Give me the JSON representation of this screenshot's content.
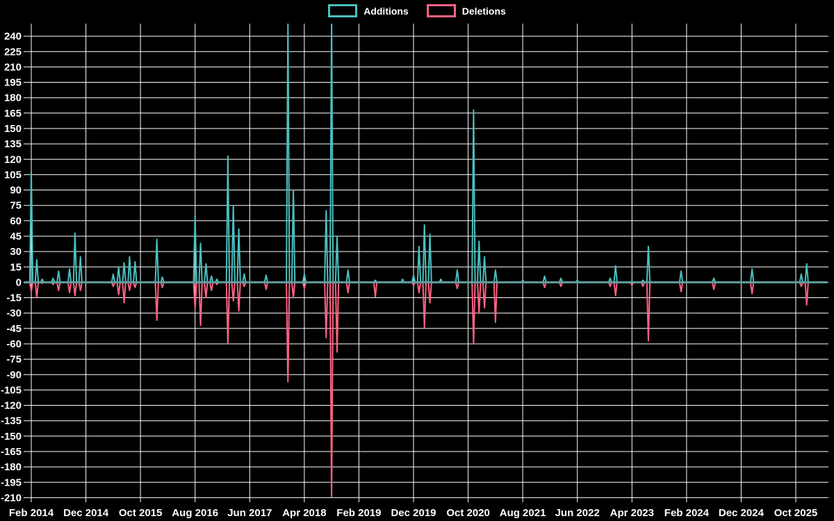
{
  "legend": {
    "items": [
      {
        "label": "Additions",
        "color": "#4BC0C0"
      },
      {
        "label": "Deletions",
        "color": "#FF6384"
      }
    ]
  },
  "colors": {
    "background": "#000000",
    "grid": "#FFFFFF",
    "zero_line": "#5F9EA0",
    "text": "#FFFFFF",
    "additions": "#4BC0C0",
    "deletions": "#FF6384"
  },
  "chart_data": {
    "type": "line",
    "description": "Monthly code additions (teal, positive) and deletions (pink, negative) spikes around a zero baseline",
    "x_start": "Feb 2014",
    "x_end": "Dec 2025",
    "n_points": 143,
    "y_axis": {
      "min": -210,
      "max": 240,
      "step": 15
    },
    "y_tick_labels": [
      "240",
      "225",
      "210",
      "195",
      "180",
      "165",
      "150",
      "135",
      "120",
      "105",
      "90",
      "75",
      "60",
      "45",
      "30",
      "15",
      "0",
      "-15",
      "-30",
      "-45",
      "-60",
      "-75",
      "-90",
      "-105",
      "-120",
      "-135",
      "-150",
      "-165",
      "-180",
      "-195",
      "-210"
    ],
    "x_tick_labels": [
      {
        "i": 0,
        "label": "Feb 2014"
      },
      {
        "i": 10,
        "label": "Dec 2014"
      },
      {
        "i": 20,
        "label": "Oct 2015"
      },
      {
        "i": 30,
        "label": "Aug 2016"
      },
      {
        "i": 40,
        "label": "Jun 2017"
      },
      {
        "i": 50,
        "label": "Apr 2018"
      },
      {
        "i": 60,
        "label": "Feb 2019"
      },
      {
        "i": 70,
        "label": "Dec 2019"
      },
      {
        "i": 80,
        "label": "Oct 2020"
      },
      {
        "i": 90,
        "label": "Aug 2021"
      },
      {
        "i": 100,
        "label": "Jun 2022"
      },
      {
        "i": 110,
        "label": "Apr 2023"
      },
      {
        "i": 120,
        "label": "Feb 2024"
      },
      {
        "i": 130,
        "label": "Dec 2024"
      },
      {
        "i": 140,
        "label": "Oct 2025"
      }
    ],
    "series": [
      {
        "name": "Additions",
        "color": "#4BC0C0"
      },
      {
        "name": "Deletions",
        "color": "#FF6384"
      }
    ],
    "all_other_values": 0,
    "spikes": [
      {
        "i": 0,
        "month": "Feb 2014",
        "additions": 108,
        "deletions": -9
      },
      {
        "i": 1,
        "month": "Mar 2014",
        "additions": 22,
        "deletions": -15
      },
      {
        "i": 2,
        "month": "Apr 2014",
        "additions": 3,
        "deletions": -1
      },
      {
        "i": 4,
        "month": "Jun 2014",
        "additions": 4,
        "deletions": -2
      },
      {
        "i": 5,
        "month": "Jul 2014",
        "additions": 11,
        "deletions": -8
      },
      {
        "i": 7,
        "month": "Sep 2014",
        "additions": 13,
        "deletions": -10
      },
      {
        "i": 8,
        "month": "Oct 2014",
        "additions": 48,
        "deletions": -13
      },
      {
        "i": 9,
        "month": "Nov 2014",
        "additions": 25,
        "deletions": -8
      },
      {
        "i": 15,
        "month": "May 2015",
        "additions": 8,
        "deletions": -4
      },
      {
        "i": 16,
        "month": "Jun 2015",
        "additions": 15,
        "deletions": -12
      },
      {
        "i": 17,
        "month": "Jul 2015",
        "additions": 19,
        "deletions": -20
      },
      {
        "i": 18,
        "month": "Aug 2015",
        "additions": 25,
        "deletions": -8
      },
      {
        "i": 19,
        "month": "Sep 2015",
        "additions": 20,
        "deletions": -5
      },
      {
        "i": 23,
        "month": "Jan 2016",
        "additions": 42,
        "deletions": -37
      },
      {
        "i": 24,
        "month": "Feb 2016",
        "additions": 5,
        "deletions": -5
      },
      {
        "i": 30,
        "month": "Aug 2016",
        "additions": 65,
        "deletions": -25
      },
      {
        "i": 31,
        "month": "Sep 2016",
        "additions": 38,
        "deletions": -42
      },
      {
        "i": 32,
        "month": "Oct 2016",
        "additions": 18,
        "deletions": -15
      },
      {
        "i": 33,
        "month": "Nov 2016",
        "additions": 6,
        "deletions": -8
      },
      {
        "i": 34,
        "month": "Dec 2016",
        "additions": 3,
        "deletions": -2
      },
      {
        "i": 36,
        "month": "Feb 2017",
        "additions": 123,
        "deletions": -60
      },
      {
        "i": 37,
        "month": "Mar 2017",
        "additions": 75,
        "deletions": -18
      },
      {
        "i": 38,
        "month": "Apr 2017",
        "additions": 52,
        "deletions": -28
      },
      {
        "i": 39,
        "month": "May 2017",
        "additions": 8,
        "deletions": -4
      },
      {
        "i": 43,
        "month": "Sep 2017",
        "additions": 7,
        "deletions": -7
      },
      {
        "i": 47,
        "month": "Jan 2018",
        "additions": 255,
        "deletions": -97
      },
      {
        "i": 48,
        "month": "Feb 2018",
        "additions": 90,
        "deletions": -15
      },
      {
        "i": 50,
        "month": "Apr 2018",
        "additions": 8,
        "deletions": -6
      },
      {
        "i": 54,
        "month": "Aug 2018",
        "additions": 70,
        "deletions": -54
      },
      {
        "i": 55,
        "month": "Sep 2018",
        "additions": 255,
        "deletions": -209
      },
      {
        "i": 56,
        "month": "Oct 2018",
        "additions": 45,
        "deletions": -68
      },
      {
        "i": 58,
        "month": "Dec 2018",
        "additions": 12,
        "deletions": -10
      },
      {
        "i": 63,
        "month": "May 2019",
        "additions": 2,
        "deletions": -14
      },
      {
        "i": 68,
        "month": "Oct 2019",
        "additions": 3,
        "deletions": 0
      },
      {
        "i": 70,
        "month": "Dec 2019",
        "additions": 7,
        "deletions": -3
      },
      {
        "i": 71,
        "month": "Jan 2020",
        "additions": 35,
        "deletions": -10
      },
      {
        "i": 72,
        "month": "Feb 2020",
        "additions": 56,
        "deletions": -44
      },
      {
        "i": 73,
        "month": "Mar 2020",
        "additions": 47,
        "deletions": -20
      },
      {
        "i": 75,
        "month": "May 2020",
        "additions": 3,
        "deletions": 0
      },
      {
        "i": 78,
        "month": "Aug 2020",
        "additions": 12,
        "deletions": -6
      },
      {
        "i": 81,
        "month": "Nov 2020",
        "additions": 168,
        "deletions": -60
      },
      {
        "i": 82,
        "month": "Dec 2020",
        "additions": 40,
        "deletions": -30
      },
      {
        "i": 83,
        "month": "Jan 2021",
        "additions": 25,
        "deletions": -25
      },
      {
        "i": 85,
        "month": "Mar 2021",
        "additions": 12,
        "deletions": -39
      },
      {
        "i": 90,
        "month": "Aug 2021",
        "additions": 2,
        "deletions": 0
      },
      {
        "i": 94,
        "month": "Dec 2021",
        "additions": 6,
        "deletions": -5
      },
      {
        "i": 97,
        "month": "Mar 2022",
        "additions": 4,
        "deletions": -4
      },
      {
        "i": 100,
        "month": "Jun 2022",
        "additions": 2,
        "deletions": 0
      },
      {
        "i": 106,
        "month": "Dec 2022",
        "additions": 4,
        "deletions": -4
      },
      {
        "i": 107,
        "month": "Jan 2023",
        "additions": 16,
        "deletions": -13
      },
      {
        "i": 110,
        "month": "Apr 2023",
        "additions": 1,
        "deletions": -3
      },
      {
        "i": 112,
        "month": "Jun 2023",
        "additions": 2,
        "deletions": -4
      },
      {
        "i": 113,
        "month": "Jul 2023",
        "additions": 35,
        "deletions": -57
      },
      {
        "i": 119,
        "month": "Jan 2024",
        "additions": 11,
        "deletions": -9
      },
      {
        "i": 125,
        "month": "Jul 2024",
        "additions": 4,
        "deletions": -7
      },
      {
        "i": 132,
        "month": "Feb 2025",
        "additions": 13,
        "deletions": -11
      },
      {
        "i": 141,
        "month": "Nov 2025",
        "additions": 8,
        "deletions": -4
      },
      {
        "i": 142,
        "month": "Dec 2025",
        "additions": 18,
        "deletions": -22
      }
    ]
  }
}
